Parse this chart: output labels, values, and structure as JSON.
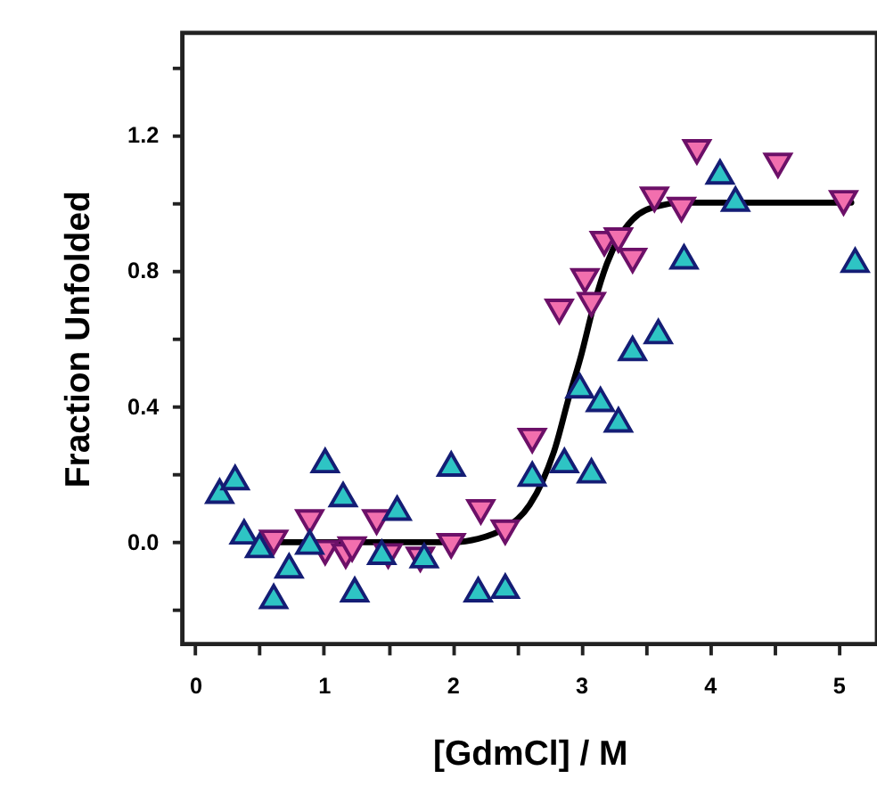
{
  "chart_data": {
    "type": "scatter",
    "xlabel": "[GdmCl] / M",
    "ylabel": "Fraction Unfolded",
    "xlim": [
      -0.1,
      5.3
    ],
    "xticks": [
      0,
      {
        "value": 0.5,
        "label": null
      },
      1,
      {
        "value": 1.5,
        "label": null
      },
      2,
      {
        "value": 2.5,
        "label": null
      },
      3,
      {
        "value": 3.5,
        "label": null
      },
      4,
      {
        "value": 4.5,
        "label": null
      },
      5
    ],
    "ylim": [
      -0.3,
      1.5
    ],
    "yticks": [
      {
        "value": -0.2,
        "label": null
      },
      {
        "value": 0,
        "label": "0.0"
      },
      {
        "value": 0.2,
        "label": null
      },
      0.4,
      {
        "value": 0.6,
        "label": null
      },
      0.8,
      {
        "value": 1.0,
        "label": null
      },
      1.2,
      {
        "value": 1.4,
        "label": null
      }
    ],
    "grid": false,
    "series": [
      {
        "marker": "triangle",
        "color": "#2ec4c4",
        "x": [
          0.19,
          0.31,
          0.38,
          0.5,
          0.61,
          0.73,
          0.89,
          1.01,
          1.15,
          1.24,
          1.45,
          1.57,
          1.78,
          1.99,
          2.2,
          2.41,
          2.62,
          2.87,
          3.08,
          2.99,
          3.15,
          3.29,
          3.4,
          3.6,
          3.8,
          4.08,
          4.2,
          5.13
        ],
        "values": [
          0.15,
          0.19,
          0.03,
          -0.01,
          -0.16,
          -0.07,
          0.0,
          0.24,
          0.14,
          -0.14,
          -0.03,
          0.1,
          -0.04,
          0.23,
          -0.14,
          -0.13,
          0.2,
          0.24,
          0.21,
          0.46,
          0.42,
          0.36,
          0.57,
          0.62,
          0.84,
          1.09,
          1.01,
          0.83
        ]
      },
      {
        "marker": "triangle-down",
        "color": "#f26fae",
        "x": [
          0.61,
          0.89,
          1.01,
          1.17,
          1.22,
          1.41,
          1.5,
          1.75,
          1.99,
          2.22,
          2.41,
          2.62,
          2.83,
          3.03,
          3.08,
          3.18,
          3.29,
          3.4,
          3.57,
          3.78,
          3.9,
          4.53,
          5.04
        ],
        "values": [
          0.0,
          0.06,
          -0.03,
          -0.04,
          -0.02,
          0.06,
          -0.04,
          -0.05,
          -0.01,
          0.09,
          0.03,
          0.3,
          0.68,
          0.77,
          0.7,
          0.88,
          0.89,
          0.83,
          1.01,
          0.98,
          1.15,
          1.11,
          1.0
        ]
      },
      {
        "type": "line",
        "color": "#000000",
        "x": [
          0.6,
          1.5,
          2.0,
          2.2,
          2.4,
          2.6,
          2.7,
          2.8,
          2.9,
          3.0,
          3.1,
          3.2,
          3.3,
          3.4,
          3.6,
          3.8,
          4.5,
          5.1
        ],
        "values": [
          0.0,
          0.0,
          0.0,
          0.01,
          0.04,
          0.11,
          0.18,
          0.28,
          0.42,
          0.55,
          0.7,
          0.82,
          0.9,
          0.95,
          0.99,
          1.0,
          1.0,
          1.0
        ]
      }
    ]
  }
}
